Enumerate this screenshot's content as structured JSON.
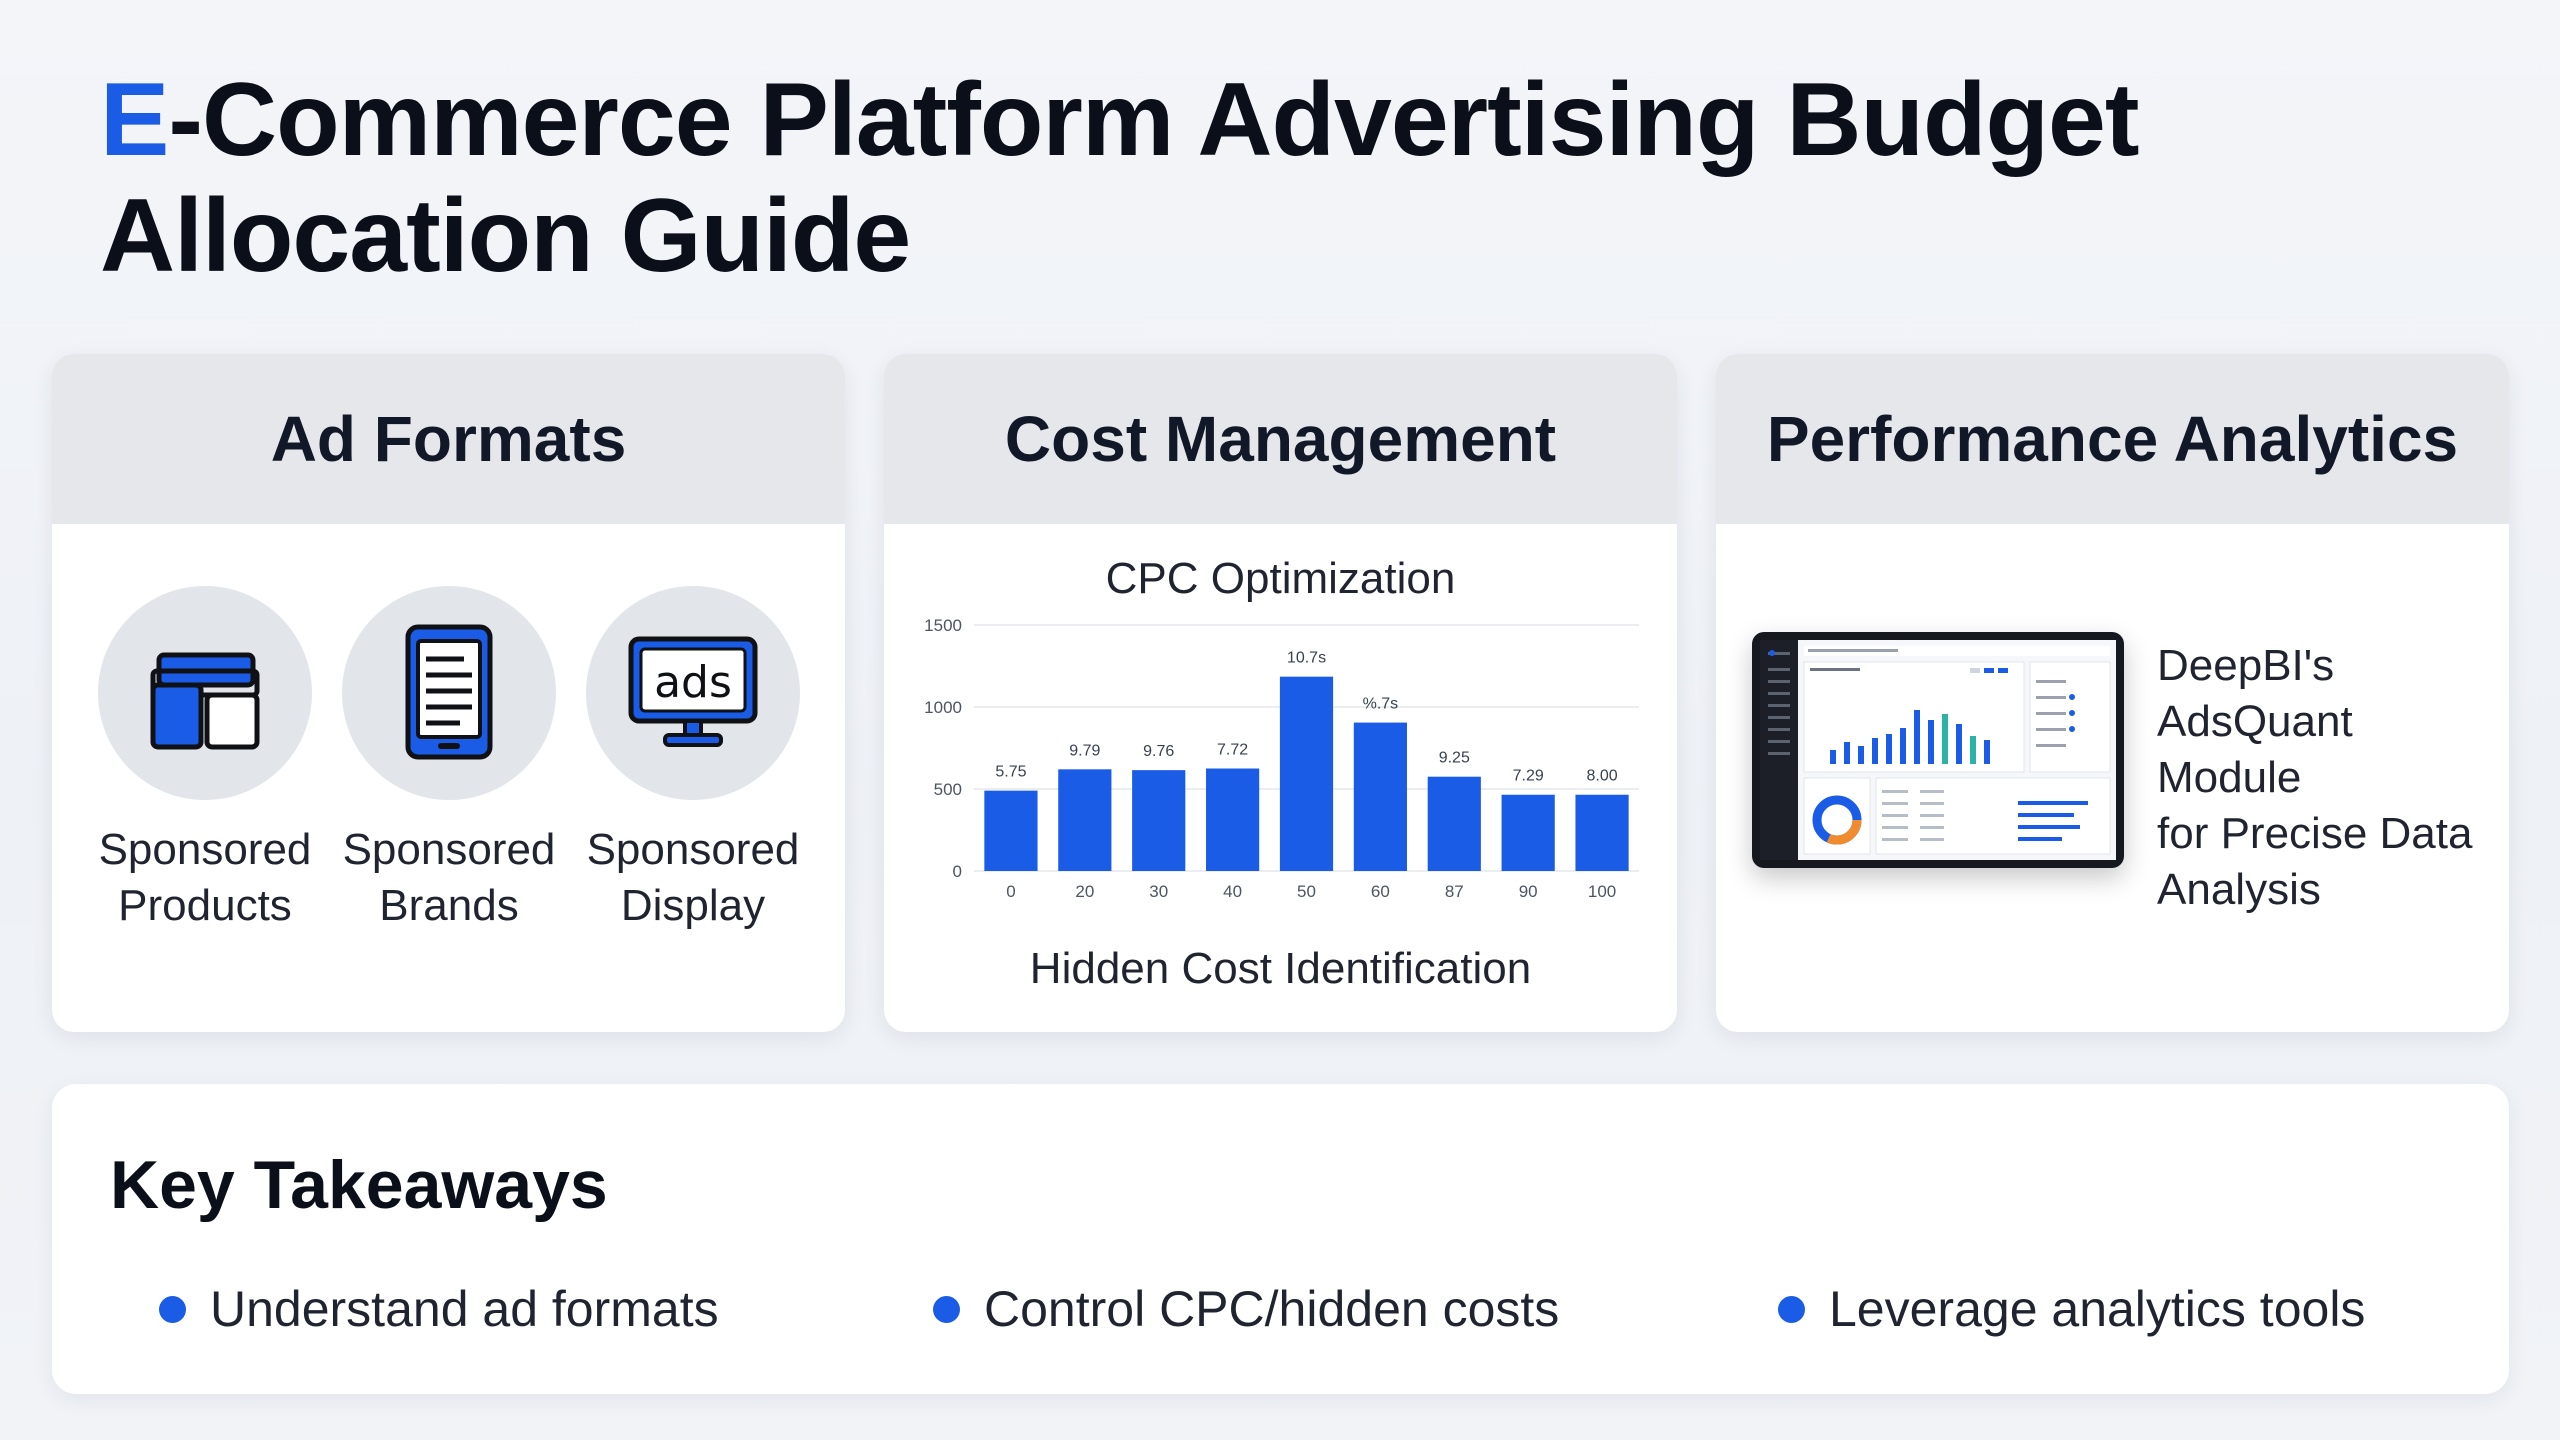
{
  "title": {
    "accent": "E",
    "rest": "-Commerce Platform Advertising Budget Allocation Guide"
  },
  "cards": {
    "ad_formats": {
      "header": "Ad Formats",
      "items": [
        {
          "label": "Sponsored\nProducts",
          "icon": "layout-blocks-icon"
        },
        {
          "label": "Sponsored\nBrands",
          "icon": "tablet-document-icon"
        },
        {
          "label": "Sponsored\nDisplay",
          "icon": "ads-monitor-icon",
          "icon_text": "ads"
        }
      ]
    },
    "cost_management": {
      "header": "Cost Management",
      "chart_title": "CPC Optimization",
      "chart_caption": "Hidden Cost Identification"
    },
    "performance_analytics": {
      "header": "Performance Analytics",
      "description": "DeepBI's\nAdsQuant Module\nfor Precise Data\nAnalysis"
    }
  },
  "chart_data": {
    "type": "bar",
    "categories": [
      "0",
      "20",
      "30",
      "40",
      "50",
      "60",
      "87",
      "90",
      "100"
    ],
    "values": [
      490,
      620,
      615,
      625,
      1185,
      905,
      575,
      465,
      465
    ],
    "data_labels": [
      "5.75",
      "9.79",
      "9.76",
      "7.72",
      "10.7s",
      "%.7s",
      "9.25",
      "7.29",
      "8.00"
    ],
    "y_ticks": [
      "0",
      "500",
      "1000",
      "1500"
    ],
    "ylim": [
      0,
      1500
    ],
    "grid": true,
    "bar_color": "#1a5ce6"
  },
  "takeaways": {
    "heading": "Key Takeaways",
    "items": [
      "Understand ad formats",
      "Control CPC/hidden costs",
      "Leverage analytics tools"
    ]
  },
  "colors": {
    "accent": "#1a5ce6",
    "header_bg": "#e5e7eb",
    "card_bg": "#ffffff"
  }
}
